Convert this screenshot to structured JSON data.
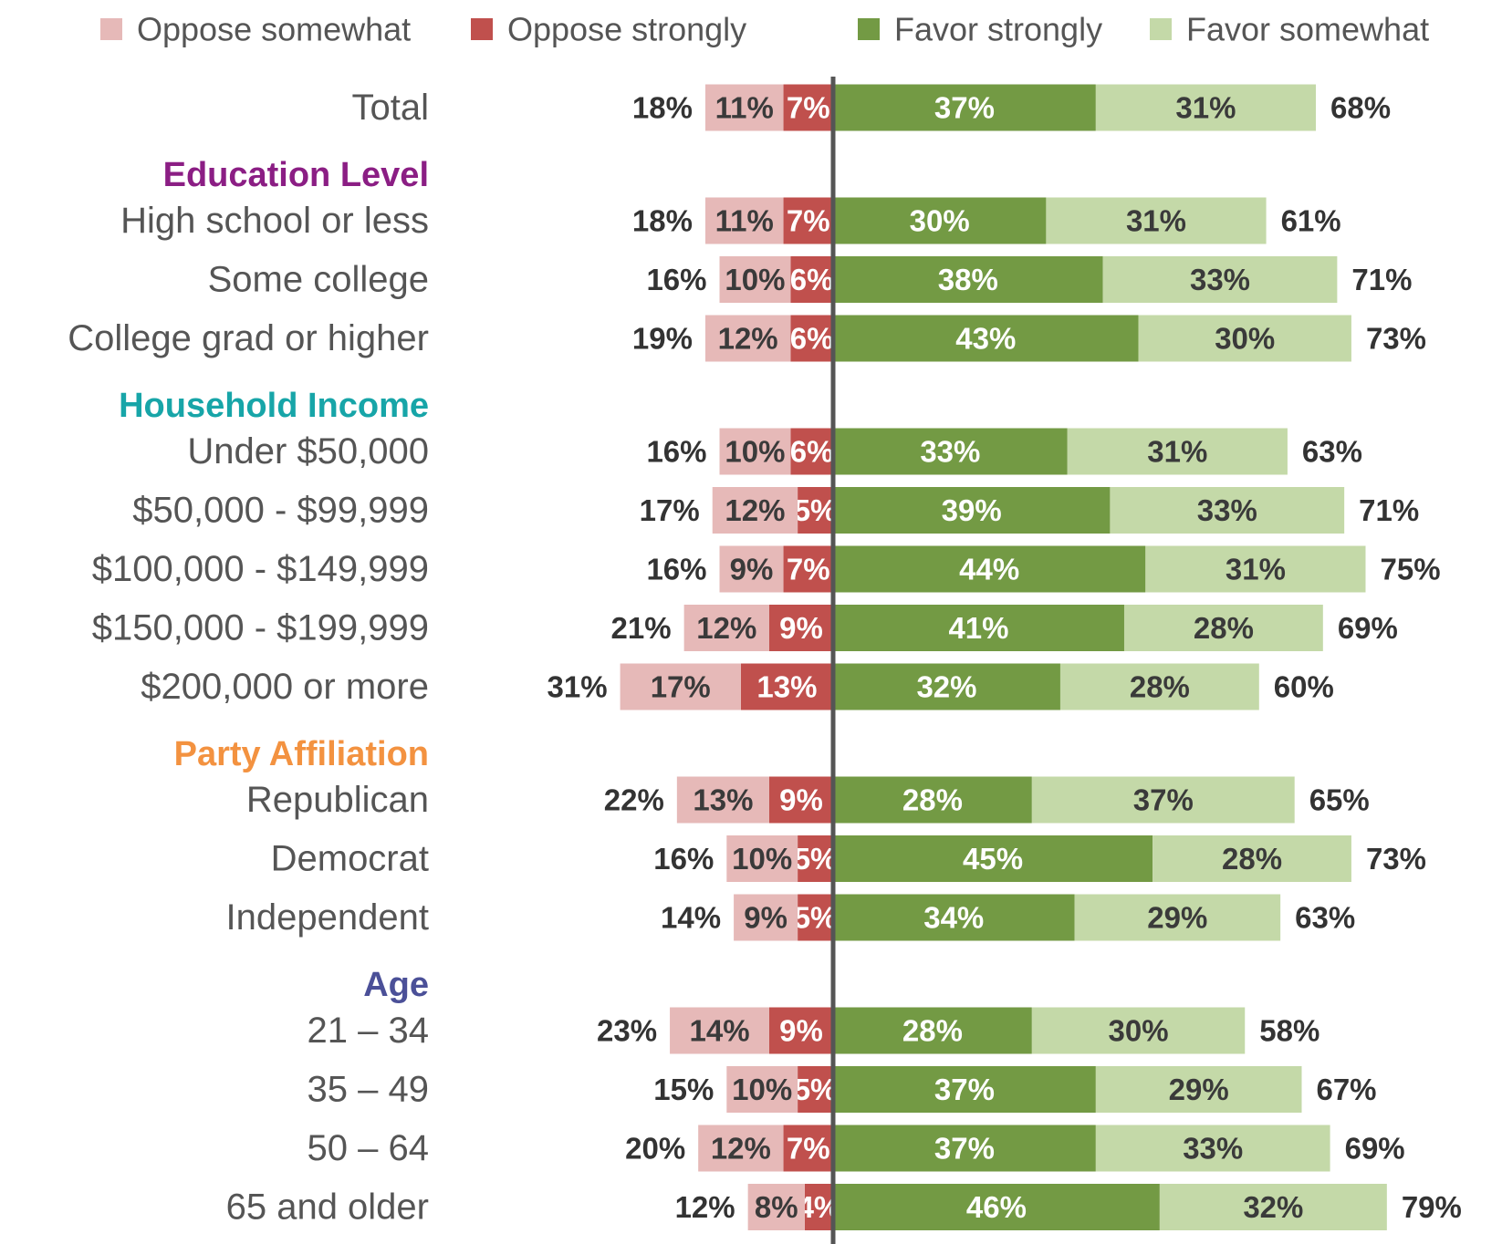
{
  "chart_data": {
    "type": "diverging_bar",
    "categories": [
      "Total",
      "High school or less",
      "Some college",
      "College grad or higher",
      "Under $50,000",
      "$50,000 - $99,999",
      "$100,000 - $149,999",
      "$150,000 - $199,999",
      "$200,000 or more",
      "Republican",
      "Democrat",
      "Independent",
      "21 – 34",
      "35 – 49",
      "50 – 64",
      "65 and older"
    ],
    "group_headers": [
      {
        "label": "Education Level",
        "color": "#8b1e84",
        "before": 1
      },
      {
        "label": "Household Income",
        "color": "#17a5a8",
        "before": 4
      },
      {
        "label": "Party Affiliation",
        "color": "#f39240",
        "before": 9
      },
      {
        "label": "Age",
        "color": "#4b5098",
        "before": 12
      }
    ],
    "series": [
      {
        "name": "Oppose somewhat",
        "color": "#e6b9b8",
        "text_color": "#3a3a3a",
        "values": [
          11,
          11,
          10,
          12,
          10,
          12,
          9,
          12,
          17,
          13,
          10,
          9,
          14,
          10,
          12,
          8
        ],
        "value_labels": [
          "11%",
          "11%",
          "10%",
          "12%",
          "10%",
          "12%",
          "9%",
          "12%",
          "17%",
          "13%",
          "10%",
          "9%",
          "14%",
          "10%",
          "12%",
          "8%"
        ]
      },
      {
        "name": "Oppose strongly",
        "color": "#c0504d",
        "text_color": "#ffffff",
        "values": [
          7,
          7,
          6,
          6,
          6,
          5,
          7,
          9,
          13,
          9,
          5,
          5,
          9,
          5,
          7,
          4
        ],
        "value_labels": [
          "7%",
          "7%",
          "6%",
          "6%",
          "6%",
          "5%",
          "7%",
          "9%",
          "13%",
          "9%",
          "5%",
          "5%",
          "9%",
          "5%",
          "7%",
          "4%"
        ]
      },
      {
        "name": "Favor strongly",
        "color": "#739a44",
        "text_color": "#ffffff",
        "values": [
          37,
          30,
          38,
          43,
          33,
          39,
          44,
          41,
          32,
          28,
          45,
          34,
          28,
          37,
          37,
          46
        ],
        "value_labels": [
          "37%",
          "30%",
          "38%",
          "43%",
          "33%",
          "39%",
          "44%",
          "41%",
          "32%",
          "28%",
          "45%",
          "34%",
          "28%",
          "37%",
          "37%",
          "46%"
        ]
      },
      {
        "name": "Favor somewhat",
        "color": "#c4d9a8",
        "text_color": "#3a3a3a",
        "values": [
          31,
          31,
          33,
          30,
          31,
          33,
          31,
          28,
          28,
          37,
          28,
          29,
          30,
          29,
          33,
          32
        ],
        "value_labels": [
          "31%",
          "31%",
          "33%",
          "30%",
          "31%",
          "33%",
          "31%",
          "28%",
          "28%",
          "37%",
          "28%",
          "29%",
          "30%",
          "29%",
          "33%",
          "32%"
        ]
      }
    ],
    "oppose_totals": {
      "values": [
        18,
        18,
        16,
        19,
        16,
        17,
        16,
        21,
        31,
        22,
        16,
        14,
        23,
        15,
        20,
        12
      ],
      "value_labels": [
        "18%",
        "18%",
        "16%",
        "19%",
        "16%",
        "17%",
        "16%",
        "21%",
        "31%",
        "22%",
        "16%",
        "14%",
        "23%",
        "15%",
        "20%",
        "12%"
      ]
    },
    "favor_totals": {
      "values": [
        68,
        61,
        71,
        73,
        63,
        71,
        75,
        69,
        60,
        65,
        73,
        63,
        58,
        67,
        69,
        79
      ],
      "value_labels": [
        "68%",
        "61%",
        "71%",
        "73%",
        "63%",
        "71%",
        "75%",
        "69%",
        "60%",
        "65%",
        "73%",
        "63%",
        "58%",
        "67%",
        "69%",
        "79%"
      ]
    }
  }
}
